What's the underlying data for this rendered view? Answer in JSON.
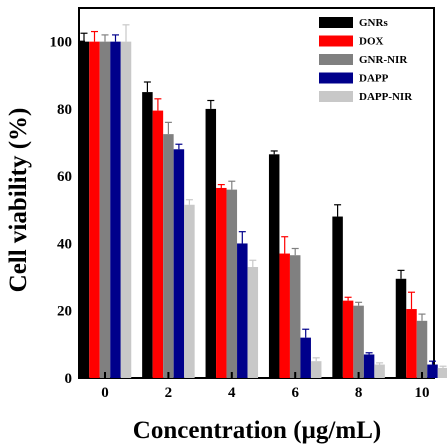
{
  "chart_data": {
    "type": "bar",
    "xlabel": "Concentration (µg/mL)",
    "ylabel": "Cell viability (%)",
    "categories": [
      "0",
      "2",
      "4",
      "6",
      "8",
      "10"
    ],
    "ylim": [
      0,
      110
    ],
    "yticks": [
      0,
      20,
      40,
      60,
      80,
      100
    ],
    "grid": false,
    "legend_position": "top-right",
    "series": [
      {
        "name": "GNRs",
        "color": "#000000",
        "values": [
          100,
          85,
          80,
          66.5,
          48,
          29.5
        ],
        "errors": [
          2.5,
          3,
          2.5,
          1,
          3.5,
          2.5
        ]
      },
      {
        "name": "DOX",
        "color": "#ff0000",
        "values": [
          100,
          79.5,
          56.5,
          37,
          23,
          20.5
        ],
        "errors": [
          3,
          3.5,
          1,
          5,
          1,
          5
        ]
      },
      {
        "name": "GNR-NIR",
        "color": "#808080",
        "values": [
          100,
          72.5,
          56,
          36.5,
          21.5,
          17
        ],
        "errors": [
          2,
          3.5,
          2.5,
          2,
          1,
          2
        ]
      },
      {
        "name": "DAPP",
        "color": "#00008b",
        "values": [
          100,
          68,
          40,
          12,
          7,
          4
        ],
        "errors": [
          2,
          1.5,
          3.5,
          2.5,
          0.5,
          1
        ]
      },
      {
        "name": "DAPP-NIR",
        "color": "#c8c8c8",
        "values": [
          100,
          51.5,
          33,
          5,
          4,
          3
        ],
        "errors": [
          5,
          1.5,
          2,
          1,
          0.5,
          0.5
        ]
      }
    ]
  }
}
